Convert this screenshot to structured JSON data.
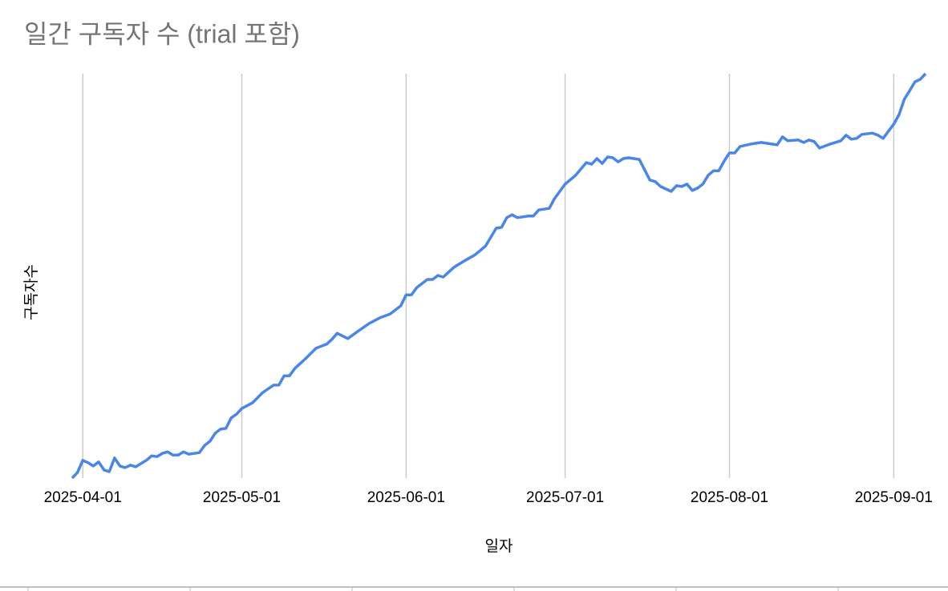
{
  "chart_data": {
    "type": "line",
    "title": "일간 구독자 수 (trial 포함)",
    "x_label": "일자",
    "y_label": "구독자수",
    "x": [
      "2025-03-30",
      "2025-03-31",
      "2025-04-01",
      "2025-04-02",
      "2025-04-03",
      "2025-04-04",
      "2025-04-05",
      "2025-04-06",
      "2025-04-07",
      "2025-04-08",
      "2025-04-09",
      "2025-04-10",
      "2025-04-11",
      "2025-04-12",
      "2025-04-13",
      "2025-04-14",
      "2025-04-15",
      "2025-04-16",
      "2025-04-17",
      "2025-04-18",
      "2025-04-19",
      "2025-04-20",
      "2025-04-21",
      "2025-04-22",
      "2025-04-23",
      "2025-04-24",
      "2025-04-25",
      "2025-04-26",
      "2025-04-27",
      "2025-04-28",
      "2025-04-29",
      "2025-04-30",
      "2025-05-01",
      "2025-05-03",
      "2025-05-05",
      "2025-05-07",
      "2025-05-08",
      "2025-05-09",
      "2025-05-10",
      "2025-05-11",
      "2025-05-13",
      "2025-05-15",
      "2025-05-17",
      "2025-05-18",
      "2025-05-19",
      "2025-05-21",
      "2025-05-23",
      "2025-05-25",
      "2025-05-27",
      "2025-05-29",
      "2025-05-31",
      "2025-06-01",
      "2025-06-02",
      "2025-06-03",
      "2025-06-05",
      "2025-06-06",
      "2025-06-07",
      "2025-06-08",
      "2025-06-10",
      "2025-06-12",
      "2025-06-14",
      "2025-06-16",
      "2025-06-18",
      "2025-06-19",
      "2025-06-20",
      "2025-06-21",
      "2025-06-22",
      "2025-06-24",
      "2025-06-25",
      "2025-06-26",
      "2025-06-28",
      "2025-06-29",
      "2025-07-01",
      "2025-07-03",
      "2025-07-05",
      "2025-07-06",
      "2025-07-07",
      "2025-07-08",
      "2025-07-09",
      "2025-07-10",
      "2025-07-11",
      "2025-07-12",
      "2025-07-13",
      "2025-07-15",
      "2025-07-17",
      "2025-07-18",
      "2025-07-19",
      "2025-07-21",
      "2025-07-22",
      "2025-07-23",
      "2025-07-24",
      "2025-07-25",
      "2025-07-26",
      "2025-07-27",
      "2025-07-28",
      "2025-07-29",
      "2025-07-30",
      "2025-07-31",
      "2025-08-01",
      "2025-08-02",
      "2025-08-03",
      "2025-08-05",
      "2025-08-07",
      "2025-08-09",
      "2025-08-10",
      "2025-08-11",
      "2025-08-12",
      "2025-08-14",
      "2025-08-15",
      "2025-08-16",
      "2025-08-17",
      "2025-08-18",
      "2025-08-20",
      "2025-08-22",
      "2025-08-23",
      "2025-08-24",
      "2025-08-25",
      "2025-08-26",
      "2025-08-28",
      "2025-08-29",
      "2025-08-30",
      "2025-09-01",
      "2025-09-02",
      "2025-09-03",
      "2025-09-04",
      "2025-09-05",
      "2025-09-06",
      "2025-09-07"
    ],
    "series": [
      {
        "name": "구독자수",
        "color": "#4a86e8",
        "values": [
          0,
          1.4,
          4.4,
          3.8,
          3.0,
          4.0,
          2.0,
          1.6,
          5.0,
          3.0,
          2.6,
          3.2,
          2.8,
          3.6,
          4.4,
          5.5,
          5.3,
          6.1,
          6.5,
          5.7,
          5.7,
          6.5,
          5.9,
          6.1,
          6.3,
          8.1,
          9.1,
          11.1,
          12.1,
          12.3,
          14.9,
          15.8,
          17.2,
          18.6,
          21.2,
          23.0,
          23.0,
          25.3,
          25.3,
          27.1,
          29.5,
          32.1,
          33.1,
          34.3,
          35.8,
          34.5,
          36.4,
          38.2,
          39.6,
          40.6,
          42.6,
          45.3,
          45.3,
          47.1,
          49.1,
          49.1,
          50.1,
          49.7,
          52.1,
          53.7,
          55.2,
          57.4,
          61.8,
          62.0,
          64.4,
          65.1,
          64.4,
          64.8,
          64.8,
          66.3,
          66.7,
          69.1,
          72.7,
          74.9,
          78.0,
          77.6,
          79.0,
          77.8,
          79.4,
          79.2,
          78.2,
          79.0,
          79.2,
          78.8,
          73.7,
          73.3,
          72.1,
          70.9,
          72.3,
          72.1,
          72.7,
          71.1,
          71.7,
          72.7,
          74.9,
          76.0,
          76.0,
          78.4,
          80.4,
          80.4,
          82.0,
          82.6,
          83.0,
          82.6,
          82.4,
          84.4,
          83.4,
          83.6,
          83.0,
          83.6,
          83.2,
          81.6,
          82.6,
          83.4,
          84.8,
          83.8,
          84.0,
          85.0,
          85.3,
          84.8,
          84.0,
          87.5,
          89.9,
          93.7,
          95.8,
          98.0,
          98.6,
          100
        ]
      }
    ],
    "xlim": [
      "2025-03-30",
      "2025-09-07"
    ],
    "xticks": [
      "2025-04-01",
      "2025-05-01",
      "2025-06-01",
      "2025-07-01",
      "2025-08-01",
      "2025-09-01"
    ],
    "ylim": [
      0,
      100
    ],
    "grid": true
  }
}
